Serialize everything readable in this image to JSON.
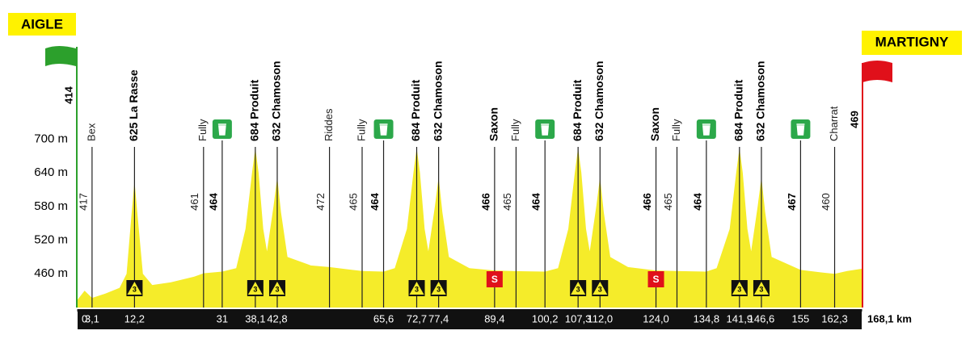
{
  "start": "AIGLE",
  "finish": "MARTIGNY",
  "chart_data": {
    "type": "profile",
    "ylim": [
      400,
      860
    ],
    "yticks": [
      {
        "value": 460,
        "label": "460 m"
      },
      {
        "value": 520,
        "label": "520 m"
      },
      {
        "value": 580,
        "label": "580 m"
      },
      {
        "value": 640,
        "label": "640 m"
      },
      {
        "value": 700,
        "label": "700 m"
      }
    ],
    "xlim": [
      0,
      168.1
    ],
    "xticks": [
      0,
      {
        "value": 3.1,
        "label": "3,1"
      },
      {
        "value": 12.2,
        "label": "12,2"
      },
      31,
      {
        "value": 38.1,
        "label": "38,1"
      },
      {
        "value": 42.8,
        "label": "42,8"
      },
      {
        "value": 65.6,
        "label": "65,6"
      },
      {
        "value": 72.7,
        "label": "72,7"
      },
      {
        "value": 77.4,
        "label": "77,4"
      },
      {
        "value": 89.4,
        "label": "89,4"
      },
      {
        "value": 100.2,
        "label": "100,2"
      },
      {
        "value": 107.3,
        "label": "107,3"
      },
      {
        "value": 112.0,
        "label": "112,0"
      },
      {
        "value": 124.0,
        "label": "124,0"
      },
      {
        "value": 134.8,
        "label": "134,8"
      },
      {
        "value": 141.9,
        "label": "141,9"
      },
      {
        "value": 146.6,
        "label": "146,6"
      },
      155,
      {
        "value": 162.3,
        "label": "162,3"
      },
      {
        "value": 168.1,
        "label": "168,1 km"
      }
    ],
    "start_altitude": 414,
    "finish_altitude": 469,
    "profile": {
      "color": "#f5ec2a",
      "x": [
        0,
        1.5,
        3.1,
        6,
        9,
        10.5,
        11.5,
        12.2,
        12.9,
        14,
        16,
        20,
        25,
        27,
        31,
        34,
        36,
        37.4,
        38.1,
        38.8,
        39.8,
        40.6,
        42,
        42.8,
        43.6,
        45,
        50,
        54,
        58,
        61,
        65.6,
        68,
        70.6,
        72,
        72.7,
        73.4,
        74.4,
        75.2,
        76.6,
        77.4,
        78.2,
        79.6,
        84,
        89.4,
        93,
        100.2,
        103,
        105.2,
        106.6,
        107.3,
        108,
        109,
        109.8,
        111.2,
        112,
        112.8,
        114.2,
        118,
        124,
        128,
        134.8,
        137,
        139.8,
        141.2,
        141.9,
        142.6,
        143.6,
        144.4,
        145.8,
        146.6,
        147.4,
        148.8,
        155,
        160,
        162.3,
        165,
        168.1
      ],
      "values": [
        414,
        430,
        417,
        425,
        435,
        460,
        560,
        625,
        560,
        460,
        440,
        445,
        455,
        461,
        464,
        470,
        540,
        640,
        684,
        640,
        540,
        500,
        580,
        632,
        570,
        490,
        475,
        472,
        468,
        465,
        464,
        470,
        540,
        640,
        684,
        640,
        540,
        500,
        580,
        632,
        570,
        490,
        470,
        466,
        465,
        464,
        470,
        540,
        640,
        684,
        640,
        540,
        500,
        580,
        632,
        570,
        490,
        472,
        466,
        465,
        464,
        470,
        540,
        640,
        684,
        640,
        540,
        500,
        580,
        632,
        570,
        490,
        467,
        462,
        460,
        465,
        469
      ]
    },
    "markers": [
      {
        "km": 3.1,
        "name": "Bex",
        "altitude": 417
      },
      {
        "km": 12.2,
        "name": "625 La Rasse",
        "category": "3"
      },
      {
        "km": 27,
        "name": "Fully",
        "altitude": 461
      },
      {
        "km": 31,
        "altitude": 464,
        "feed": true
      },
      {
        "km": 38.1,
        "name": "684 Produit",
        "category": "3"
      },
      {
        "km": 42.8,
        "name": "632 Chamoson",
        "category": "3"
      },
      {
        "km": 54,
        "name": "Riddes",
        "altitude": 472
      },
      {
        "km": 61,
        "name": "Fully",
        "altitude": 465
      },
      {
        "km": 65.6,
        "altitude": 464,
        "feed": true
      },
      {
        "km": 72.7,
        "name": "684 Produit",
        "category": "3"
      },
      {
        "km": 77.4,
        "name": "632 Chamoson",
        "category": "3"
      },
      {
        "km": 89.4,
        "name": "Saxon",
        "altitude": 466,
        "sprint": "S"
      },
      {
        "km": 94,
        "name": "Fully",
        "altitude": 465
      },
      {
        "km": 100.2,
        "altitude": 464,
        "feed": true
      },
      {
        "km": 107.3,
        "name": "684 Produit",
        "category": "3"
      },
      {
        "km": 112.0,
        "name": "632 Chamoson",
        "category": "3"
      },
      {
        "km": 124.0,
        "name": "Saxon",
        "altitude": 466,
        "sprint": "S"
      },
      {
        "km": 128.5,
        "name": "Fully",
        "altitude": 465
      },
      {
        "km": 134.8,
        "altitude": 464,
        "feed": true
      },
      {
        "km": 141.9,
        "name": "684 Produit",
        "category": "3"
      },
      {
        "km": 146.6,
        "name": "632 Chamoson",
        "category": "3"
      },
      {
        "km": 155,
        "altitude": 467,
        "feed": true
      },
      {
        "km": 162.3,
        "name": "Charrat",
        "altitude": 460
      }
    ]
  }
}
